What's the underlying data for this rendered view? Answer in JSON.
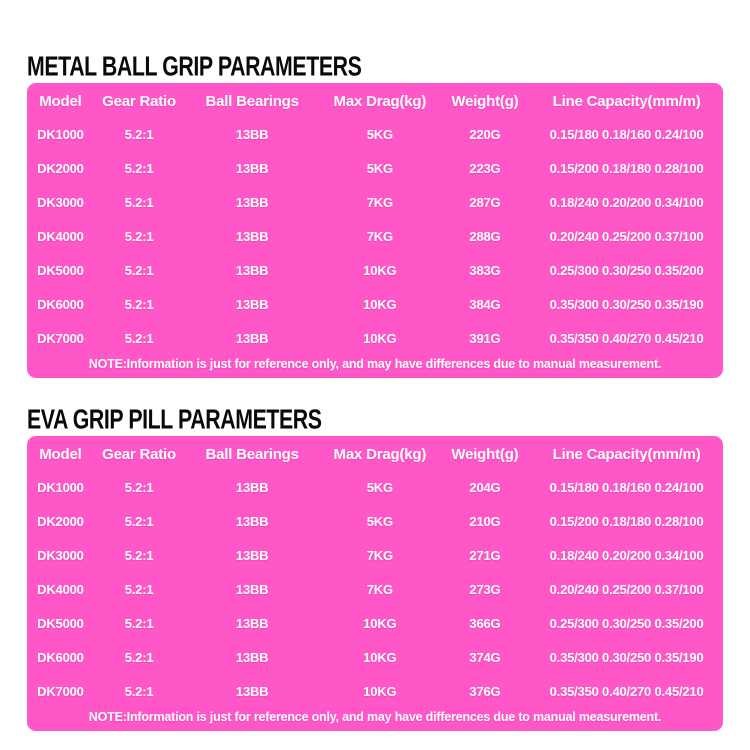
{
  "page": {
    "background": "#ffffff",
    "table_color": "#ff57c8",
    "title_color": "#0a0a0a",
    "table_text_color": "#ffffff"
  },
  "tables": [
    {
      "title": "METAL BALL GRIP PARAMETERS",
      "columns": [
        "Model",
        "Gear Ratio",
        "Ball Bearings",
        "Max Drag(kg)",
        "Weight(g)",
        "Line Capacity(mm/m)"
      ],
      "rows": [
        [
          "DK1000",
          "5.2:1",
          "13BB",
          "5KG",
          "220G",
          "0.15/180 0.18/160 0.24/100"
        ],
        [
          "DK2000",
          "5.2:1",
          "13BB",
          "5KG",
          "223G",
          "0.15/200 0.18/180 0.28/100"
        ],
        [
          "DK3000",
          "5.2:1",
          "13BB",
          "7KG",
          "287G",
          "0.18/240 0.20/200 0.34/100"
        ],
        [
          "DK4000",
          "5.2:1",
          "13BB",
          "7KG",
          "288G",
          "0.20/240 0.25/200 0.37/100"
        ],
        [
          "DK5000",
          "5.2:1",
          "13BB",
          "10KG",
          "383G",
          "0.25/300 0.30/250 0.35/200"
        ],
        [
          "DK6000",
          "5.2:1",
          "13BB",
          "10KG",
          "384G",
          "0.35/300 0.30/250 0.35/190"
        ],
        [
          "DK7000",
          "5.2:1",
          "13BB",
          "10KG",
          "391G",
          "0.35/350 0.40/270 0.45/210"
        ]
      ],
      "note": "NOTE:Information is just for reference only, and may have differences due to manual measurement."
    },
    {
      "title": "EVA GRIP PILL PARAMETERS",
      "columns": [
        "Model",
        "Gear Ratio",
        "Ball Bearings",
        "Max Drag(kg)",
        "Weight(g)",
        "Line Capacity(mm/m)"
      ],
      "rows": [
        [
          "DK1000",
          "5.2:1",
          "13BB",
          "5KG",
          "204G",
          "0.15/180 0.18/160 0.24/100"
        ],
        [
          "DK2000",
          "5.2:1",
          "13BB",
          "5KG",
          "210G",
          "0.15/200 0.18/180 0.28/100"
        ],
        [
          "DK3000",
          "5.2:1",
          "13BB",
          "7KG",
          "271G",
          "0.18/240 0.20/200 0.34/100"
        ],
        [
          "DK4000",
          "5.2:1",
          "13BB",
          "7KG",
          "273G",
          "0.20/240 0.25/200 0.37/100"
        ],
        [
          "DK5000",
          "5.2:1",
          "13BB",
          "10KG",
          "366G",
          "0.25/300 0.30/250 0.35/200"
        ],
        [
          "DK6000",
          "5.2:1",
          "13BB",
          "10KG",
          "374G",
          "0.35/300 0.30/250 0.35/190"
        ],
        [
          "DK7000",
          "5.2:1",
          "13BB",
          "10KG",
          "376G",
          "0.35/350 0.40/270 0.45/210"
        ]
      ],
      "note": "NOTE:Information is just for reference only, and may have differences due to manual measurement."
    }
  ]
}
